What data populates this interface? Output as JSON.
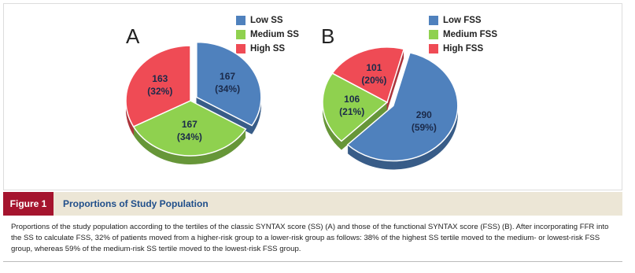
{
  "chart_data": [
    {
      "type": "pie",
      "title": "A",
      "categories": [
        "Low SS",
        "Medium SS",
        "High SS"
      ],
      "values": [
        167,
        167,
        163
      ],
      "value_labels": [
        "167\n(34%)",
        "167\n(34%)",
        "163\n(32%)"
      ],
      "colors": [
        "#4f81bd",
        "#8fd14f",
        "#ef4b55"
      ]
    },
    {
      "type": "pie",
      "title": "B",
      "categories": [
        "Low FSS",
        "Medium FSS",
        "High FSS"
      ],
      "values": [
        290,
        106,
        101
      ],
      "value_labels": [
        "290\n(59%)",
        "106\n(21%)",
        "101\n(20%)"
      ],
      "colors": [
        "#4f81bd",
        "#8fd14f",
        "#ef4b55"
      ]
    }
  ],
  "figure": {
    "label": "Figure 1",
    "title": "Proportions of Study Population",
    "caption": "Proportions of the study population according to the tertiles of the classic SYNTAX score (SS) (A) and those of the functional SYNTAX score (FSS) (B). After incorporating FFR into the SS to calculate FSS, 32% of patients moved from a higher-risk group to a lower-risk group as follows: 38% of the highest SS tertile moved to the medium- or lowest-risk FSS group, whereas 59% of the medium-risk SS tertile moved to the lowest-risk FSS group."
  }
}
